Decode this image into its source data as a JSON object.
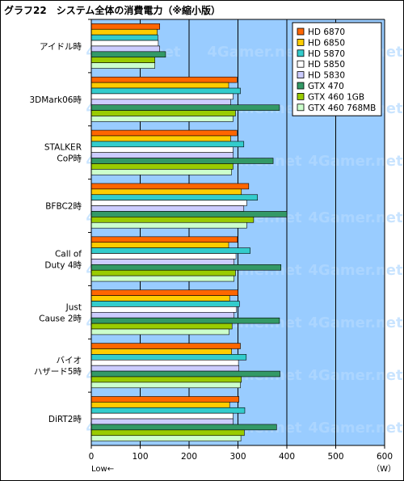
{
  "chart_data": {
    "type": "bar",
    "orientation": "horizontal",
    "title": "グラフ22　システム全体の消費電力（※縮小版）",
    "xlabel": "",
    "ylabel": "",
    "unit": "（W）",
    "low_note": "Low←",
    "xlim": [
      0,
      600
    ],
    "xticks": [
      0,
      100,
      200,
      300,
      400,
      500,
      600
    ],
    "grid": "vertical",
    "legend_position": "top-right",
    "watermark": "4Gamer.net",
    "categories": [
      [
        "アイドル時"
      ],
      [
        "3DMark06時"
      ],
      [
        "STALKER",
        "CoP時"
      ],
      [
        "BFBC2時"
      ],
      [
        "Call of",
        "Duty 4時"
      ],
      [
        "Just",
        "Cause 2時"
      ],
      [
        "バイオ",
        "ハザード5時"
      ],
      [
        "DiRT2時"
      ]
    ],
    "series": [
      {
        "name": "HD 6870",
        "color": "#ff6600",
        "values": [
          140,
          298,
          298,
          322,
          299,
          300,
          305,
          302
        ]
      },
      {
        "name": "HD 6850",
        "color": "#ffcc00",
        "values": [
          135,
          281,
          285,
          307,
          281,
          283,
          287,
          283
        ]
      },
      {
        "name": "HD 5870",
        "color": "#33cccc",
        "values": [
          136,
          305,
          312,
          340,
          325,
          303,
          317,
          314
        ]
      },
      {
        "name": "HD 5850",
        "color": "#ffffff",
        "values": [
          137,
          290,
          290,
          318,
          296,
          297,
          301,
          290
        ]
      },
      {
        "name": "HD 5830",
        "color": "#ccccff",
        "values": [
          140,
          285,
          290,
          312,
          292,
          292,
          302,
          290
        ]
      },
      {
        "name": "GTX 470",
        "color": "#339966",
        "values": [
          152,
          385,
          372,
          400,
          388,
          385,
          386,
          379
        ]
      },
      {
        "name": "GTX 460 1GB",
        "color": "#99cc00",
        "values": [
          130,
          295,
          290,
          332,
          295,
          288,
          307,
          313
        ]
      },
      {
        "name": "GTX 460 768MB",
        "color": "#ccffcc",
        "values": [
          130,
          290,
          287,
          318,
          292,
          282,
          305,
          306
        ]
      }
    ],
    "colors": {
      "plot_bg": "#99ccff",
      "frame_bg": "#ffffff",
      "bar_stroke": "#000000",
      "watermark": "#b3d9ff"
    }
  }
}
